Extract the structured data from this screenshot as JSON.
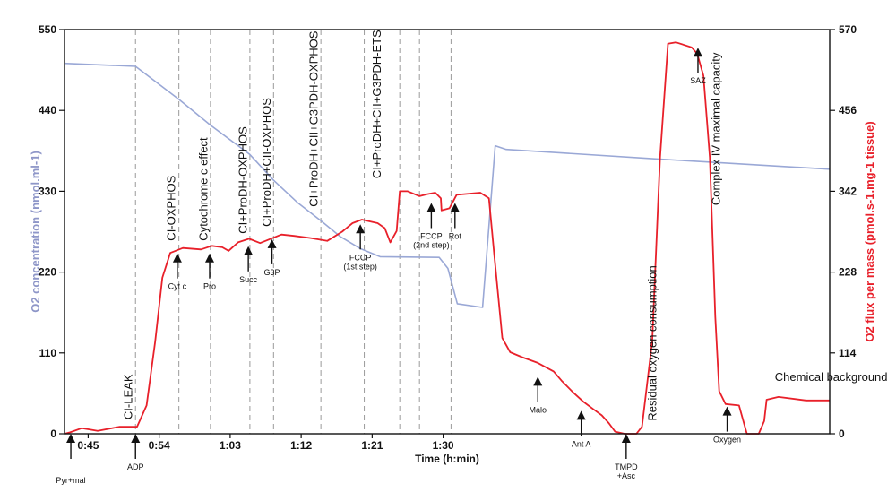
{
  "chart_data": {
    "type": "line",
    "xlabel": "Time (h:min)",
    "ylabel_left": "O2 concentration (nmol.ml-1)",
    "ylabel_right": "O2 flux per mass (pmol.s-1.mg-1 tissue)",
    "x_range_min": [
      42,
      139
    ],
    "x_ticks": [
      {
        "label": "0:45",
        "min": 45
      },
      {
        "label": "0:54",
        "min": 54
      },
      {
        "label": "1:03",
        "min": 63
      },
      {
        "label": "1:12",
        "min": 72
      },
      {
        "label": "1:21",
        "min": 81
      },
      {
        "label": "1:30",
        "min": 90
      }
    ],
    "ylim_left": [
      0,
      550
    ],
    "yticks_left": [
      0,
      110,
      220,
      330,
      440,
      550
    ],
    "ylim_right": [
      0,
      570
    ],
    "yticks_right": [
      0,
      114,
      228,
      342,
      456,
      570
    ],
    "colors": {
      "concentration": "#9aa8d6",
      "flux": "#e8202a",
      "left_axis": "#8e96c8",
      "right_axis": "#e8202a",
      "grid": "#9a9a9a"
    },
    "event_lines_min": [
      51,
      56.5,
      60.5,
      65.5,
      68.5,
      74.5,
      80.0,
      84.5,
      87.0,
      91.0
    ],
    "series": [
      {
        "name": "O2 concentration",
        "axis": "left",
        "points": [
          [
            42,
            504
          ],
          [
            51,
            500
          ],
          [
            56.5,
            455
          ],
          [
            60.5,
            420
          ],
          [
            65.5,
            380
          ],
          [
            68.5,
            345
          ],
          [
            71.5,
            315
          ],
          [
            74.5,
            290
          ],
          [
            77,
            268
          ],
          [
            79.5,
            252
          ],
          [
            82,
            241
          ],
          [
            89.5,
            240
          ],
          [
            90.6,
            225
          ],
          [
            91.8,
            177
          ],
          [
            95,
            172
          ],
          [
            96.6,
            392
          ],
          [
            98,
            387
          ],
          [
            117,
            374
          ],
          [
            139,
            360
          ]
        ]
      },
      {
        "name": "O2 flux per mass",
        "axis": "right",
        "points": [
          [
            42,
            0
          ],
          [
            42.7,
            2
          ],
          [
            44.2,
            8
          ],
          [
            46.2,
            4
          ],
          [
            49,
            10
          ],
          [
            51.2,
            10
          ],
          [
            52.4,
            40
          ],
          [
            53.5,
            130
          ],
          [
            54.4,
            220
          ],
          [
            55.4,
            255
          ],
          [
            57,
            262
          ],
          [
            59.3,
            260
          ],
          [
            60.7,
            265
          ],
          [
            62,
            263
          ],
          [
            62.8,
            258
          ],
          [
            64,
            270
          ],
          [
            65.4,
            275
          ],
          [
            66.8,
            269
          ],
          [
            69.5,
            281
          ],
          [
            71.1,
            279
          ],
          [
            73.2,
            276
          ],
          [
            75.3,
            272
          ],
          [
            77.2,
            285
          ],
          [
            78.5,
            297
          ],
          [
            79.7,
            302
          ],
          [
            81.7,
            297
          ],
          [
            82.6,
            290
          ],
          [
            83.3,
            270
          ],
          [
            84.1,
            286
          ],
          [
            84.5,
            342
          ],
          [
            85.5,
            342
          ],
          [
            87,
            335
          ],
          [
            88,
            338
          ],
          [
            89,
            340
          ],
          [
            89.7,
            332
          ],
          [
            89.8,
            315
          ],
          [
            90.8,
            318
          ],
          [
            91.7,
            337
          ],
          [
            94.7,
            340
          ],
          [
            95.8,
            332
          ],
          [
            96.5,
            250
          ],
          [
            97.5,
            135
          ],
          [
            98.5,
            115
          ],
          [
            100,
            108
          ],
          [
            102,
            100
          ],
          [
            104,
            88
          ],
          [
            105,
            75
          ],
          [
            106.5,
            58
          ],
          [
            107.8,
            45
          ],
          [
            109,
            35
          ],
          [
            110.1,
            26
          ],
          [
            111,
            15
          ],
          [
            111.8,
            3
          ],
          [
            113,
            0
          ],
          [
            114.5,
            0
          ],
          [
            115.2,
            10
          ],
          [
            116.5,
            130
          ],
          [
            117.5,
            390
          ],
          [
            118.5,
            550
          ],
          [
            119.5,
            552
          ],
          [
            121.5,
            545
          ],
          [
            122.2,
            536
          ],
          [
            123,
            505
          ],
          [
            123.8,
            390
          ],
          [
            124.5,
            165
          ],
          [
            125,
            60
          ],
          [
            125.8,
            42
          ],
          [
            127.5,
            40
          ],
          [
            128,
            20
          ],
          [
            128.5,
            0
          ],
          [
            130,
            0
          ],
          [
            130.7,
            18
          ],
          [
            131,
            48
          ],
          [
            132.5,
            52
          ],
          [
            136,
            47
          ],
          [
            139,
            47
          ]
        ]
      }
    ],
    "phase_labels": [
      {
        "text": "CI-LEAK",
        "min": 50.6,
        "value": 10
      },
      {
        "text": "CI-OXPHOS",
        "min": 56.0,
        "value": 262
      },
      {
        "text": "Cytochrome c effect",
        "min": 60.1,
        "value": 262
      },
      {
        "text": "CI+ProDH-OXPHOS",
        "min": 65.1,
        "value": 272
      },
      {
        "text": "CI+ProDH+CII-OXPHOS",
        "min": 68.1,
        "value": 282
      },
      {
        "text": "CI+ProDH+CII+G3PDH-OXPHOS",
        "min": 74.1,
        "value": 310
      },
      {
        "text": "CI+ProDH+CII+G3PDH-ETS",
        "min": 82.1,
        "value": 350
      },
      {
        "text": "Residual oxygen consumption",
        "min": 117.0,
        "value": 8
      },
      {
        "text": "Complex IV maximal capacity",
        "min": 125.1,
        "value": 312
      },
      {
        "text": "Chemical background",
        "min": 125.8,
        "value": 62
      }
    ],
    "markers": [
      {
        "label": "Pyr+mal",
        "sub": "",
        "min": 42.8,
        "arrow_to": 0,
        "below_axis": true
      },
      {
        "label": "ADP",
        "sub": "",
        "min": 51.0,
        "arrow_to": 0,
        "below_axis": true
      },
      {
        "label": "Cyt c",
        "sub": "",
        "min": 56.3,
        "arrow_to": 262
      },
      {
        "label": "Pro",
        "sub": "",
        "min": 60.4,
        "arrow_to": 262
      },
      {
        "label": "Succ",
        "sub": "",
        "min": 65.3,
        "arrow_to": 272
      },
      {
        "label": "G3P",
        "sub": "",
        "min": 68.3,
        "arrow_to": 282
      },
      {
        "label": "FCCP",
        "sub": "(1st step)",
        "min": 79.5,
        "arrow_to": 303
      },
      {
        "label": "FCCP",
        "sub": "(2nd step)",
        "min": 88.5,
        "arrow_to": 333
      },
      {
        "label": "Rot",
        "sub": "",
        "min": 91.5,
        "arrow_to": 333
      },
      {
        "label": "Malo",
        "sub": "",
        "min": 102.0,
        "arrow_to": 88
      },
      {
        "label": "Ant A",
        "sub": "",
        "min": 107.5,
        "arrow_to": 40
      },
      {
        "label": "TMPD",
        "sub": "+Asc",
        "min": 113.2,
        "arrow_to": 0,
        "below_axis": true
      },
      {
        "label": "SAZ",
        "sub": "",
        "min": 122.3,
        "arrow_to": 552
      },
      {
        "label": "Oxygen",
        "sub": "",
        "min": 126.0,
        "arrow_to": 46
      }
    ]
  }
}
